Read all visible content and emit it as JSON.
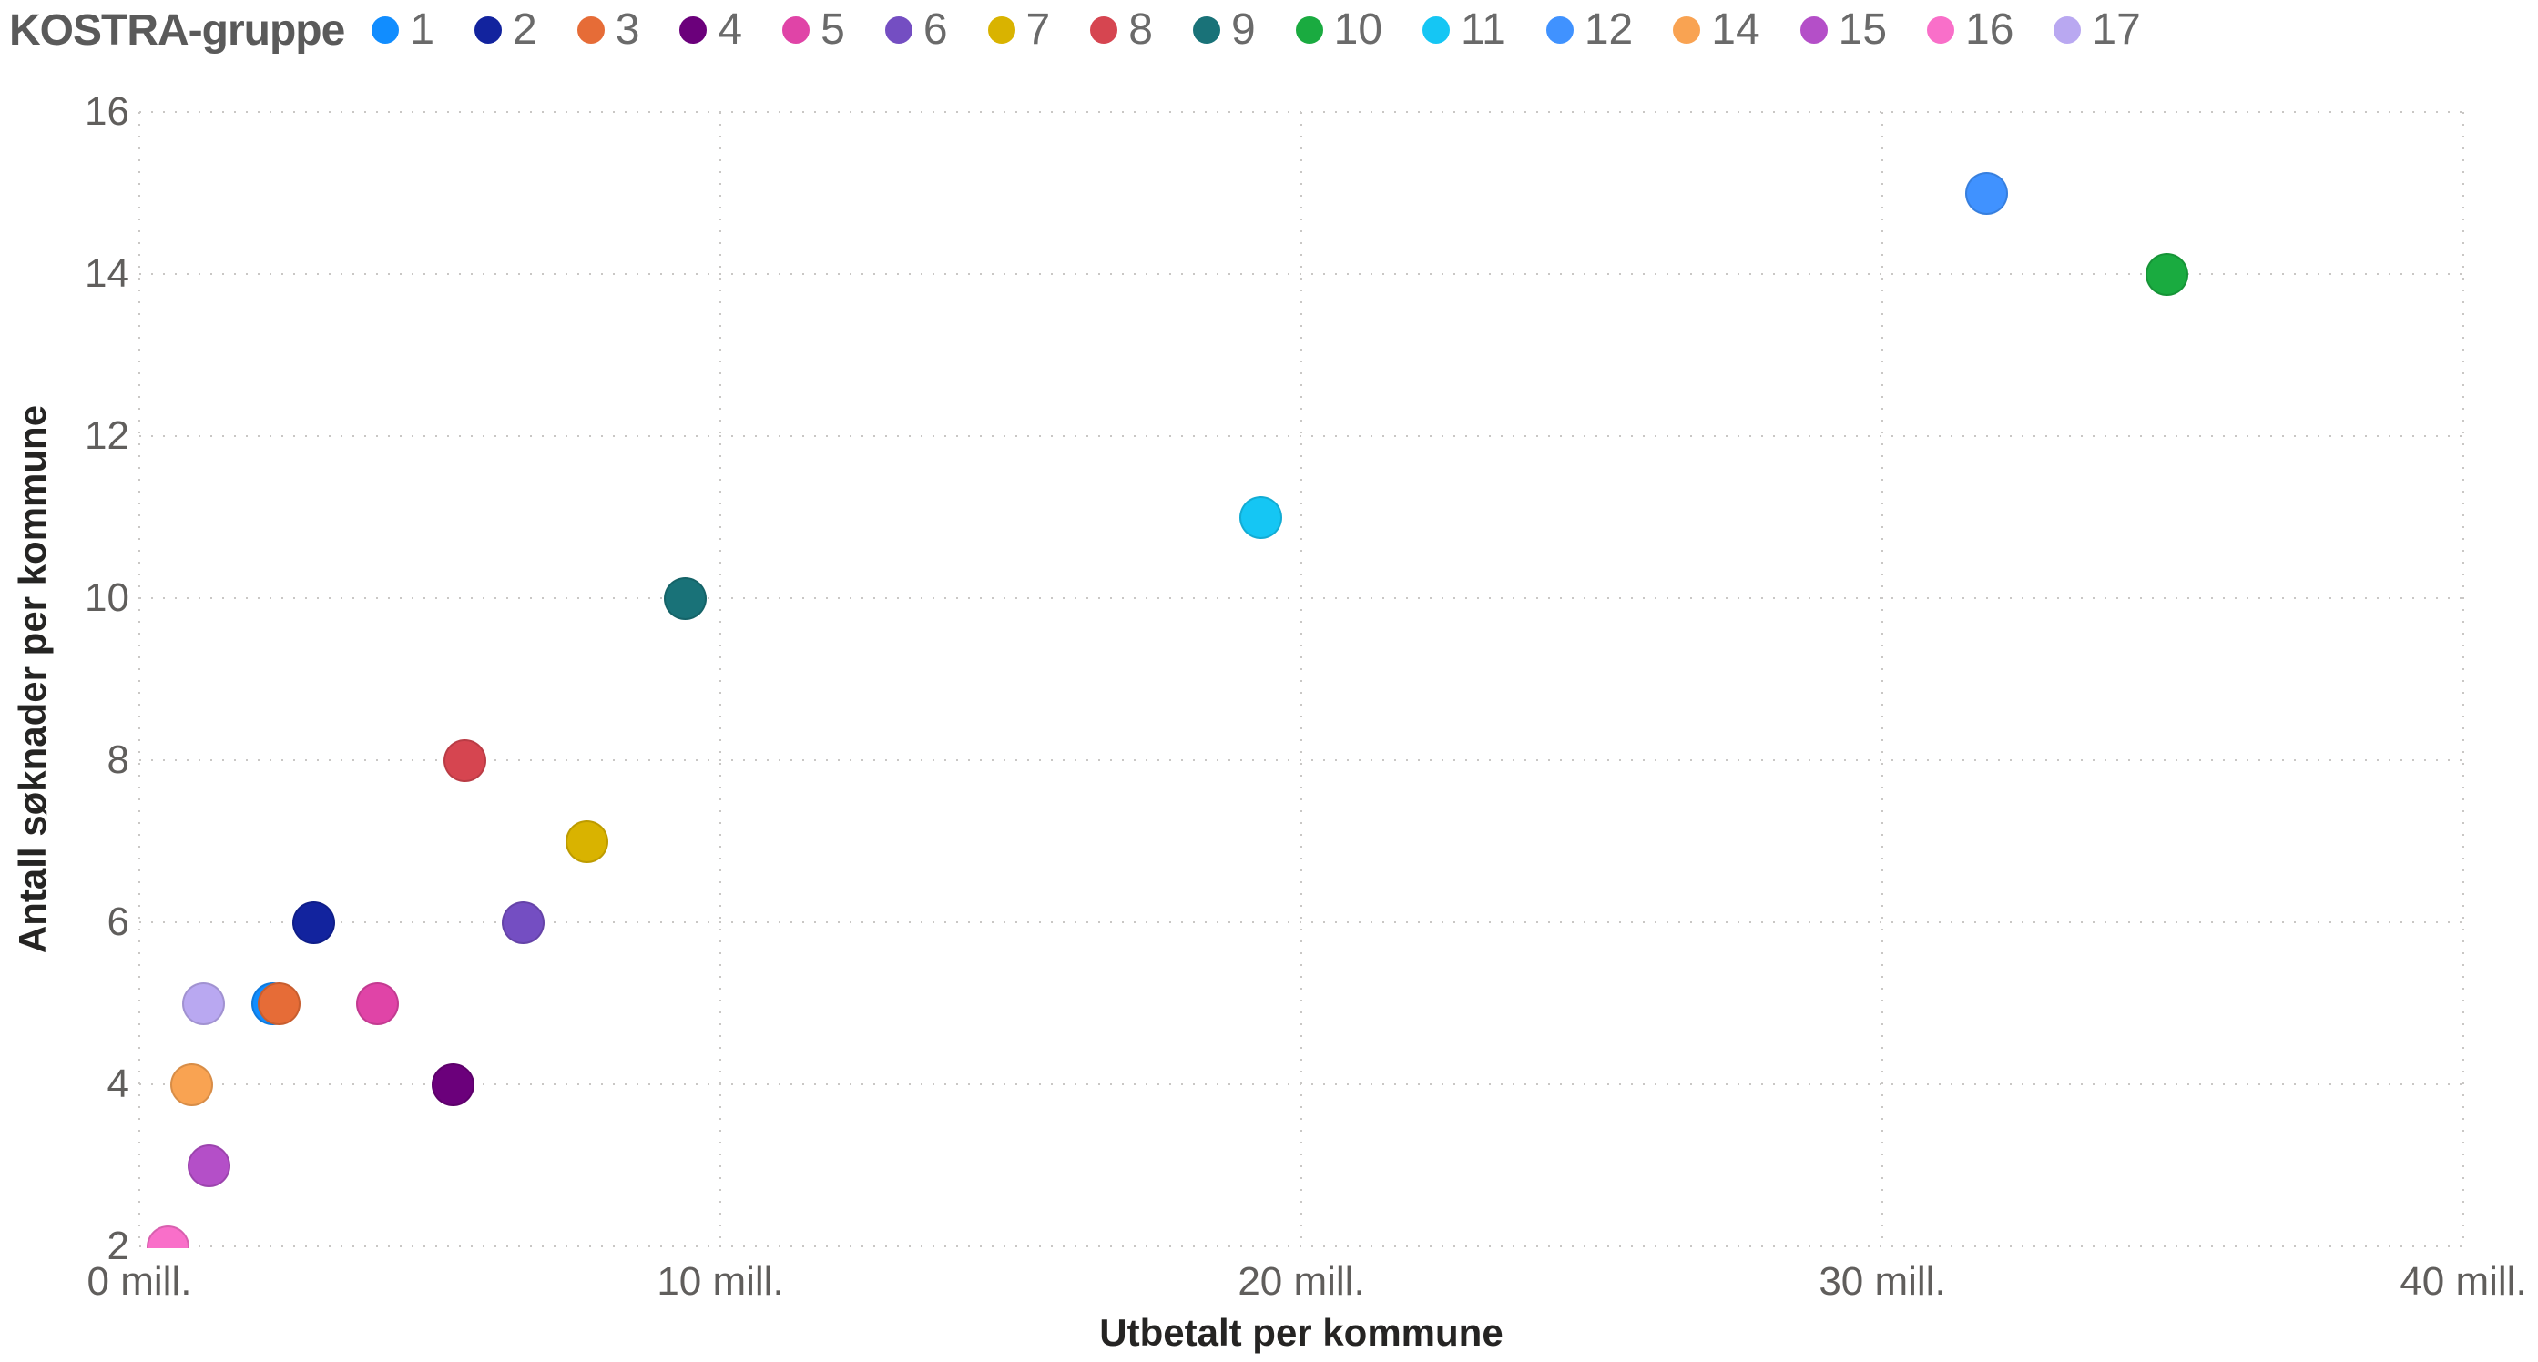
{
  "chart_data": {
    "type": "scatter",
    "legend_title": "KOSTRA-gruppe",
    "xlabel": "Utbetalt per kommune",
    "ylabel": "Antall søknader per kommune",
    "x_unit": "mill.",
    "xlim": [
      0,
      40
    ],
    "ylim": [
      2,
      16
    ],
    "grid": true,
    "legend_position": "top",
    "x_ticks": [
      {
        "value": 0,
        "label": "0 mill."
      },
      {
        "value": 10,
        "label": "10 mill."
      },
      {
        "value": 20,
        "label": "20 mill."
      },
      {
        "value": 30,
        "label": "30 mill."
      },
      {
        "value": 40,
        "label": "40 mill."
      }
    ],
    "y_ticks": [
      16,
      14,
      12,
      10,
      8,
      6,
      4,
      2
    ],
    "groups": [
      {
        "label": "1",
        "color": "#118DFF",
        "x": 2.3,
        "y": 5
      },
      {
        "label": "2",
        "color": "#12239E",
        "x": 3.0,
        "y": 6
      },
      {
        "label": "3",
        "color": "#E66C37",
        "x": 2.4,
        "y": 5
      },
      {
        "label": "4",
        "color": "#6B007B",
        "x": 5.4,
        "y": 4
      },
      {
        "label": "5",
        "color": "#E044A7",
        "x": 4.1,
        "y": 5
      },
      {
        "label": "6",
        "color": "#744EC2",
        "x": 6.6,
        "y": 6
      },
      {
        "label": "7",
        "color": "#D9B300",
        "x": 7.7,
        "y": 7
      },
      {
        "label": "8",
        "color": "#D64550",
        "x": 5.6,
        "y": 8
      },
      {
        "label": "9",
        "color": "#197278",
        "x": 9.4,
        "y": 10
      },
      {
        "label": "10",
        "color": "#1AAB40",
        "x": 34.9,
        "y": 14
      },
      {
        "label": "11",
        "color": "#15C6F4",
        "x": 19.3,
        "y": 11
      },
      {
        "label": "12",
        "color": "#4092FF",
        "x": 31.8,
        "y": 15
      },
      {
        "label": "14",
        "color": "#F9A352",
        "x": 0.9,
        "y": 4
      },
      {
        "label": "15",
        "color": "#B44FC8",
        "x": 1.2,
        "y": 3
      },
      {
        "label": "16",
        "color": "#F96FC9",
        "x": 0.5,
        "y": 2
      },
      {
        "label": "17",
        "color": "#B9A8F1",
        "x": 1.1,
        "y": 5
      }
    ]
  }
}
